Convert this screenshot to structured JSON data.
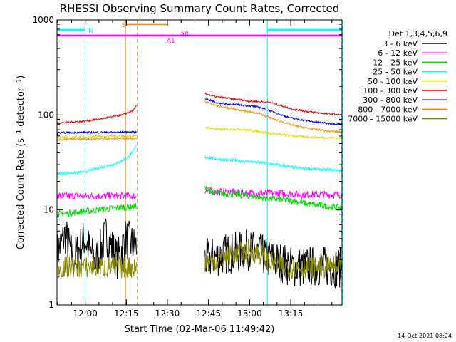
{
  "chart_data": {
    "type": "line",
    "title": "RHESSI Observing Summary Count Rates, Corrected",
    "xlabel": "Start Time (02-Mar-06 11:49:42)",
    "ylabel": "Corrected Count Rate (s⁻¹ detector⁻¹)",
    "y_scale": "log",
    "ylim": [
      1,
      1000
    ],
    "xlim_minutes_after_start": [
      0,
      104
    ],
    "x_ticks": [
      {
        "label": "12:00",
        "minute": 10.3
      },
      {
        "label": "12:15",
        "minute": 25.3
      },
      {
        "label": "12:30",
        "minute": 40.3
      },
      {
        "label": "12:45",
        "minute": 55.3
      },
      {
        "label": "13:00",
        "minute": 70.3
      },
      {
        "label": "13:15",
        "minute": 85.3
      }
    ],
    "y_ticks": [
      {
        "label": "1",
        "value": 1
      },
      {
        "label": "10",
        "value": 10
      },
      {
        "label": "100",
        "value": 100
      },
      {
        "label": "1000",
        "value": 1000
      }
    ],
    "legend": {
      "placement": "right",
      "header": "Det 1,3,4,5,6,9"
    },
    "gaps_minutes": [
      [
        29.5,
        53.5
      ]
    ],
    "series": [
      {
        "name": "3 - 6 keV",
        "color": "#000000",
        "before": [
          [
            0,
            3.5
          ],
          [
            3,
            5.5
          ],
          [
            6,
            3
          ],
          [
            10,
            5
          ],
          [
            14,
            2.8
          ],
          [
            18,
            5.5
          ],
          [
            22,
            3
          ],
          [
            25,
            5
          ],
          [
            29,
            4
          ]
        ],
        "after": [
          [
            54,
            3
          ],
          [
            58,
            3.2
          ],
          [
            62,
            3.5
          ],
          [
            66,
            3.6
          ],
          [
            70,
            3.8
          ],
          [
            74,
            3.5
          ],
          [
            78,
            3
          ],
          [
            82,
            2.8
          ],
          [
            86,
            2.5
          ],
          [
            90,
            2.5
          ],
          [
            95,
            2.6
          ],
          [
            100,
            2.5
          ],
          [
            104,
            2.5
          ]
        ],
        "noise": 0.22
      },
      {
        "name": "6 - 12 keV",
        "color": "#ff00ff",
        "before": [
          [
            0,
            14
          ],
          [
            29,
            14
          ]
        ],
        "after": [
          [
            54,
            16
          ],
          [
            60,
            15.5
          ],
          [
            70,
            15
          ],
          [
            80,
            15
          ],
          [
            90,
            14.5
          ],
          [
            104,
            14.5
          ]
        ],
        "noise": 0.04
      },
      {
        "name": "12 - 25 keV",
        "color": "#00dd00",
        "before": [
          [
            0,
            9
          ],
          [
            15,
            10
          ],
          [
            29,
            11
          ]
        ],
        "after": [
          [
            54,
            17
          ],
          [
            58,
            15
          ],
          [
            66,
            14.5
          ],
          [
            74,
            13.5
          ],
          [
            80,
            13
          ],
          [
            86,
            12.5
          ],
          [
            92,
            11.5
          ],
          [
            98,
            11
          ],
          [
            104,
            10.5
          ]
        ],
        "noise": 0.035
      },
      {
        "name": "25 - 50 keV",
        "color": "#00ffff",
        "before": [
          [
            0,
            24
          ],
          [
            10,
            25
          ],
          [
            16,
            28
          ],
          [
            22,
            31
          ],
          [
            26,
            36
          ],
          [
            28,
            42
          ],
          [
            29,
            48
          ]
        ],
        "after": [
          [
            54,
            36
          ],
          [
            60,
            34
          ],
          [
            66,
            33
          ],
          [
            72,
            32
          ],
          [
            80,
            30
          ],
          [
            86,
            28
          ],
          [
            92,
            27
          ],
          [
            98,
            26.5
          ],
          [
            104,
            26
          ]
        ],
        "noise": 0.015
      },
      {
        "name": "50 - 100 keV",
        "color": "#dddd00",
        "before": [
          [
            0,
            58
          ],
          [
            29,
            60
          ]
        ],
        "after": [
          [
            54,
            74
          ],
          [
            60,
            70
          ],
          [
            66,
            71
          ],
          [
            72,
            68
          ],
          [
            78,
            64
          ],
          [
            84,
            61
          ],
          [
            90,
            59
          ],
          [
            96,
            58
          ],
          [
            104,
            57
          ]
        ],
        "noise": 0.012
      },
      {
        "name": "100 - 300 keV",
        "color": "#dd0000",
        "before": [
          [
            0,
            82
          ],
          [
            10,
            86
          ],
          [
            18,
            93
          ],
          [
            24,
            100
          ],
          [
            28,
            112
          ],
          [
            29,
            125
          ]
        ],
        "after": [
          [
            54,
            168
          ],
          [
            58,
            155
          ],
          [
            62,
            150
          ],
          [
            66,
            145
          ],
          [
            70,
            140
          ],
          [
            74,
            138
          ],
          [
            78,
            135
          ],
          [
            82,
            125
          ],
          [
            86,
            115
          ],
          [
            92,
            108
          ],
          [
            98,
            103
          ],
          [
            104,
            100
          ]
        ],
        "noise": 0.01
      },
      {
        "name": "300 - 800 keV",
        "color": "#0000ee",
        "before": [
          [
            0,
            65
          ],
          [
            29,
            66
          ]
        ],
        "after": [
          [
            54,
            150
          ],
          [
            58,
            135
          ],
          [
            62,
            130
          ],
          [
            66,
            128
          ],
          [
            70,
            125
          ],
          [
            74,
            120
          ],
          [
            78,
            110
          ],
          [
            82,
            100
          ],
          [
            86,
            92
          ],
          [
            92,
            86
          ],
          [
            98,
            82
          ],
          [
            104,
            80
          ]
        ],
        "noise": 0.01
      },
      {
        "name": "800 - 7000 keV",
        "color": "#ff8800",
        "before": [
          [
            0,
            55
          ],
          [
            29,
            57
          ]
        ],
        "after": [
          [
            54,
            138
          ],
          [
            58,
            125
          ],
          [
            62,
            118
          ],
          [
            66,
            113
          ],
          [
            70,
            108
          ],
          [
            74,
            103
          ],
          [
            78,
            93
          ],
          [
            82,
            85
          ],
          [
            86,
            78
          ],
          [
            92,
            72
          ],
          [
            98,
            68
          ],
          [
            104,
            66
          ]
        ],
        "noise": 0.01
      },
      {
        "name": "7000 - 15000 keV",
        "color": "#888800",
        "before": [
          [
            0,
            2.5
          ],
          [
            29,
            2.5
          ]
        ],
        "after": [
          [
            54,
            2.8
          ],
          [
            60,
            3
          ],
          [
            66,
            3.5
          ],
          [
            70,
            3.8
          ],
          [
            74,
            3.5
          ],
          [
            78,
            2.8
          ],
          [
            84,
            2.5
          ],
          [
            104,
            2.5
          ]
        ],
        "noise": 0.12
      }
    ],
    "vertical_markers": [
      {
        "minute": 10.3,
        "color": "#00ffff",
        "style": "dashed"
      },
      {
        "minute": 25.0,
        "color": "#ff8800",
        "style": "solid"
      },
      {
        "minute": 29.3,
        "color": "#ff8800",
        "style": "dashed"
      },
      {
        "minute": 76.8,
        "color": "#00ffff",
        "style": "solid"
      },
      {
        "minute": 104.3,
        "color": "#00ffff",
        "style": "dashed"
      }
    ],
    "flag_bars": [
      {
        "label": "N",
        "color": "#00ffff",
        "segments": [
          [
            0,
            10.3
          ],
          [
            76.8,
            104
          ]
        ],
        "label_at": 11.5,
        "level": 1
      },
      {
        "label": "S",
        "color": "#ff8800",
        "segments": [
          [
            25.3,
            40.5
          ]
        ],
        "label_at": 23.5,
        "level": 0
      },
      {
        "label": "A1",
        "color": "#ff00ff",
        "segments": [
          [
            0,
            104
          ]
        ],
        "label_at": 40.0,
        "level": 2
      },
      {
        "label": "A0",
        "color": "#ff00ff",
        "segments": [],
        "label_at": 45.0,
        "level": 1.6
      }
    ]
  },
  "footer": {
    "date_stamp": "14-Oct-2021 08:24"
  }
}
